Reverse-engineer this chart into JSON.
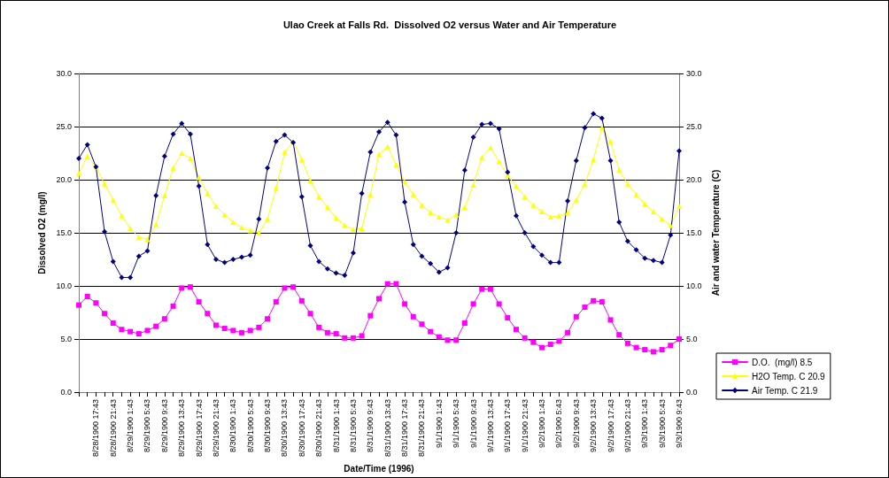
{
  "chart_data": {
    "type": "line",
    "title": "Ulao Creek at Falls Rd.  Dissolved O2 versus Water and Air Temperature",
    "xlabel": "Date/Time (1996)",
    "ylabel": "Dissolved O2 (mg/l)",
    "y2label": "Air and water Temperature (C)",
    "categories": [
      null,
      null,
      "8/28/1900 17:43",
      null,
      "8/28/1900 21:43",
      null,
      "8/29/1900 1:43",
      null,
      "8/29/1900 5:43",
      null,
      "8/29/1900 9:43",
      null,
      "8/29/1900 13:43",
      null,
      "8/29/1900 17:43",
      null,
      "8/29/1900 21:43",
      null,
      "8/30/1900 1:43",
      null,
      "8/30/1900 5:43",
      null,
      "8/30/1900 9:43",
      null,
      "8/30/1900 13:43",
      null,
      "8/30/1900 17:43",
      null,
      "8/30/1900 21:43",
      null,
      "8/31/1900 1:43",
      null,
      "8/31/1900 5:43",
      null,
      "8/31/1900 9:43",
      null,
      "8/31/1900 13:43",
      null,
      "8/31/1900 17:43",
      null,
      "8/31/1900 21:43",
      null,
      "9/1/1900 1:43",
      null,
      "9/1/1900 5:43",
      null,
      "9/1/1900 9:43",
      null,
      "9/1/1900 13:43",
      null,
      "9/1/1900 17:43",
      null,
      "9/1/1900 21:43",
      null,
      "9/2/1900 1:43",
      null,
      "9/2/1900 5:43",
      null,
      "9/2/1900 9:43",
      null,
      "9/2/1900 13:43",
      null,
      "9/2/1900 17:43",
      null,
      "9/2/1900 21:43",
      null,
      "9/3/1900 1:43",
      null,
      "9/3/1900 5:43",
      null,
      "9/3/1900 9:43"
    ],
    "ylim": [
      0,
      30
    ],
    "yticks": [
      {
        "value": 0,
        "label": "0.0"
      },
      {
        "value": 5,
        "label": "5.0"
      },
      {
        "value": 10,
        "label": "10.0"
      },
      {
        "value": 15,
        "label": "15.0"
      },
      {
        "value": 20,
        "label": "20.0"
      },
      {
        "value": 25,
        "label": "25.0"
      },
      {
        "value": 30,
        "label": "30.0"
      }
    ],
    "y2lim": [
      0,
      30
    ],
    "y2ticks": [
      {
        "value": 0,
        "label": "0.0"
      },
      {
        "value": 5,
        "label": "5.0"
      },
      {
        "value": 10,
        "label": "10.0"
      },
      {
        "value": 15,
        "label": "15.0"
      },
      {
        "value": 20,
        "label": "20.0"
      },
      {
        "value": 25,
        "label": "25.0"
      },
      {
        "value": 30,
        "label": "30.0"
      }
    ],
    "grid": "y",
    "legend": "right",
    "line_style": "solid",
    "series": [
      {
        "name": "D.O.  (mg/l) 8.5",
        "color": "#ff00ff",
        "marker": "square",
        "values": [
          8.2,
          9.0,
          8.4,
          7.4,
          6.5,
          5.9,
          5.7,
          5.5,
          5.8,
          6.2,
          6.9,
          8.1,
          9.8,
          9.9,
          8.5,
          7.4,
          6.3,
          6.0,
          5.8,
          5.6,
          5.8,
          6.1,
          6.9,
          8.5,
          9.8,
          9.9,
          8.6,
          7.4,
          6.1,
          5.6,
          5.5,
          5.1,
          5.1,
          5.3,
          7.2,
          8.8,
          10.2,
          10.2,
          8.3,
          7.1,
          6.4,
          5.7,
          5.2,
          4.9,
          4.9,
          6.5,
          8.3,
          9.7,
          9.7,
          8.3,
          7.0,
          5.9,
          5.1,
          4.7,
          4.2,
          4.5,
          4.8,
          5.6,
          7.1,
          8.0,
          8.6,
          8.5,
          6.8,
          5.4,
          4.6,
          4.2,
          4.0,
          3.8,
          4.0,
          4.4,
          5.0
        ]
      },
      {
        "name": "H2O Temp. C 20.9",
        "color": "#ffff00",
        "marker": "triangle",
        "axis": "y2",
        "values": [
          20.6,
          22.2,
          21.2,
          19.6,
          18.1,
          16.6,
          15.4,
          14.6,
          14.4,
          15.8,
          18.5,
          21.1,
          22.5,
          22.0,
          20.2,
          18.7,
          17.5,
          16.7,
          16.0,
          15.5,
          15.2,
          15.0,
          16.3,
          19.2,
          22.6,
          23.6,
          21.9,
          19.9,
          18.4,
          17.4,
          16.4,
          15.7,
          15.3,
          15.4,
          18.6,
          22.4,
          23.1,
          21.4,
          19.8,
          18.6,
          17.6,
          16.9,
          16.5,
          16.2,
          16.7,
          17.4,
          19.5,
          22.1,
          23.0,
          21.7,
          20.4,
          19.4,
          18.4,
          17.6,
          17.0,
          16.5,
          16.6,
          16.9,
          18.1,
          19.6,
          21.9,
          24.9,
          23.6,
          20.9,
          19.6,
          18.6,
          17.7,
          17.0,
          16.3,
          15.7,
          17.5
        ]
      },
      {
        "name": "Air Temp. C 21.9",
        "color": "#000080",
        "marker": "diamond",
        "axis": "y2",
        "values": [
          22.0,
          23.3,
          21.2,
          15.1,
          12.3,
          10.8,
          10.8,
          12.8,
          13.3,
          18.5,
          22.2,
          24.3,
          25.3,
          24.3,
          19.4,
          13.9,
          12.5,
          12.2,
          12.5,
          12.7,
          12.9,
          16.3,
          21.1,
          23.6,
          24.2,
          23.5,
          18.4,
          13.8,
          12.3,
          11.6,
          11.2,
          11.0,
          13.1,
          18.7,
          22.6,
          24.5,
          25.4,
          24.2,
          17.9,
          13.9,
          12.8,
          12.1,
          11.3,
          11.7,
          15.0,
          20.9,
          24.0,
          25.2,
          25.3,
          24.8,
          20.7,
          16.6,
          15.0,
          13.7,
          12.9,
          12.2,
          12.2,
          18.0,
          21.8,
          24.9,
          26.2,
          25.8,
          21.8,
          16.0,
          14.2,
          13.4,
          12.6,
          12.4,
          12.2,
          14.8,
          22.7
        ]
      }
    ]
  }
}
